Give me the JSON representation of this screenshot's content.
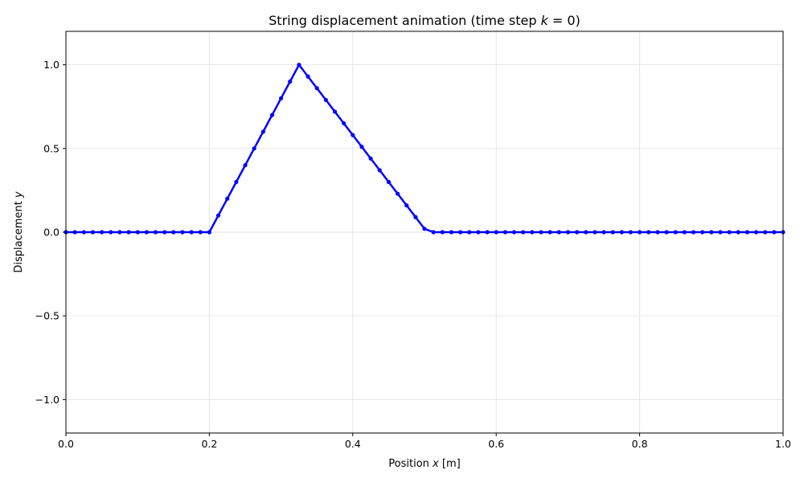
{
  "chart_data": {
    "type": "line",
    "title": {
      "prefix": "String displacement animation (time step ",
      "variable": "k",
      "suffix": " = 0)"
    },
    "xlabel": {
      "prefix": "Position ",
      "variable": "x",
      "suffix": " [m]"
    },
    "ylabel": {
      "prefix": "Displacement ",
      "variable": "y",
      "suffix": ""
    },
    "xlim": [
      0,
      1
    ],
    "ylim": [
      -1.2,
      1.2
    ],
    "xticks": [
      0.0,
      0.2,
      0.4,
      0.6,
      0.8,
      1.0
    ],
    "xtick_labels": [
      "0.0",
      "0.2",
      "0.4",
      "0.6",
      "0.8",
      "1.0"
    ],
    "yticks": [
      -1.0,
      -0.5,
      0.0,
      0.5,
      1.0
    ],
    "ytick_labels": [
      "−1.0",
      "−0.5",
      "0.0",
      "0.5",
      "1.0"
    ],
    "grid": true,
    "colors": {
      "line": "#0000ff",
      "grid": "#e6e6e6",
      "axes": "#000000"
    },
    "series": [
      {
        "markers": true,
        "x": [
          0.0,
          0.0125,
          0.025,
          0.0375,
          0.05,
          0.0625,
          0.075,
          0.0875,
          0.1,
          0.1125,
          0.125,
          0.1375,
          0.15,
          0.1625,
          0.175,
          0.1875,
          0.2,
          0.2125,
          0.225,
          0.2375,
          0.25,
          0.2625,
          0.275,
          0.2875,
          0.3,
          0.3125,
          0.325,
          0.3375,
          0.35,
          0.3625,
          0.375,
          0.3875,
          0.4,
          0.4125,
          0.425,
          0.4375,
          0.45,
          0.4625,
          0.475,
          0.4875,
          0.5,
          0.5125,
          0.525,
          0.5375,
          0.55,
          0.5625,
          0.575,
          0.5875,
          0.6,
          0.6125,
          0.625,
          0.6375,
          0.65,
          0.6625,
          0.675,
          0.6875,
          0.7,
          0.7125,
          0.725,
          0.7375,
          0.75,
          0.7625,
          0.775,
          0.7875,
          0.8,
          0.8125,
          0.825,
          0.8375,
          0.85,
          0.8625,
          0.875,
          0.8875,
          0.9,
          0.9125,
          0.925,
          0.9375,
          0.95,
          0.9625,
          0.975,
          0.9875,
          1.0
        ],
        "y": [
          0,
          0,
          0,
          0,
          0,
          0,
          0,
          0,
          0,
          0,
          0,
          0,
          0,
          0,
          0,
          0,
          0,
          0.1,
          0.2,
          0.3,
          0.4,
          0.5,
          0.6,
          0.7,
          0.8,
          0.9,
          1.0,
          0.93,
          0.86,
          0.79,
          0.72,
          0.65,
          0.58,
          0.51,
          0.44,
          0.37,
          0.3,
          0.23,
          0.16,
          0.09,
          0.02,
          0,
          0,
          0,
          0,
          0,
          0,
          0,
          0,
          0,
          0,
          0,
          0,
          0,
          0,
          0,
          0,
          0,
          0,
          0,
          0,
          0,
          0,
          0,
          0,
          0,
          0,
          0,
          0,
          0,
          0,
          0,
          0,
          0,
          0,
          0,
          0,
          0,
          0,
          0,
          0
        ]
      }
    ]
  }
}
